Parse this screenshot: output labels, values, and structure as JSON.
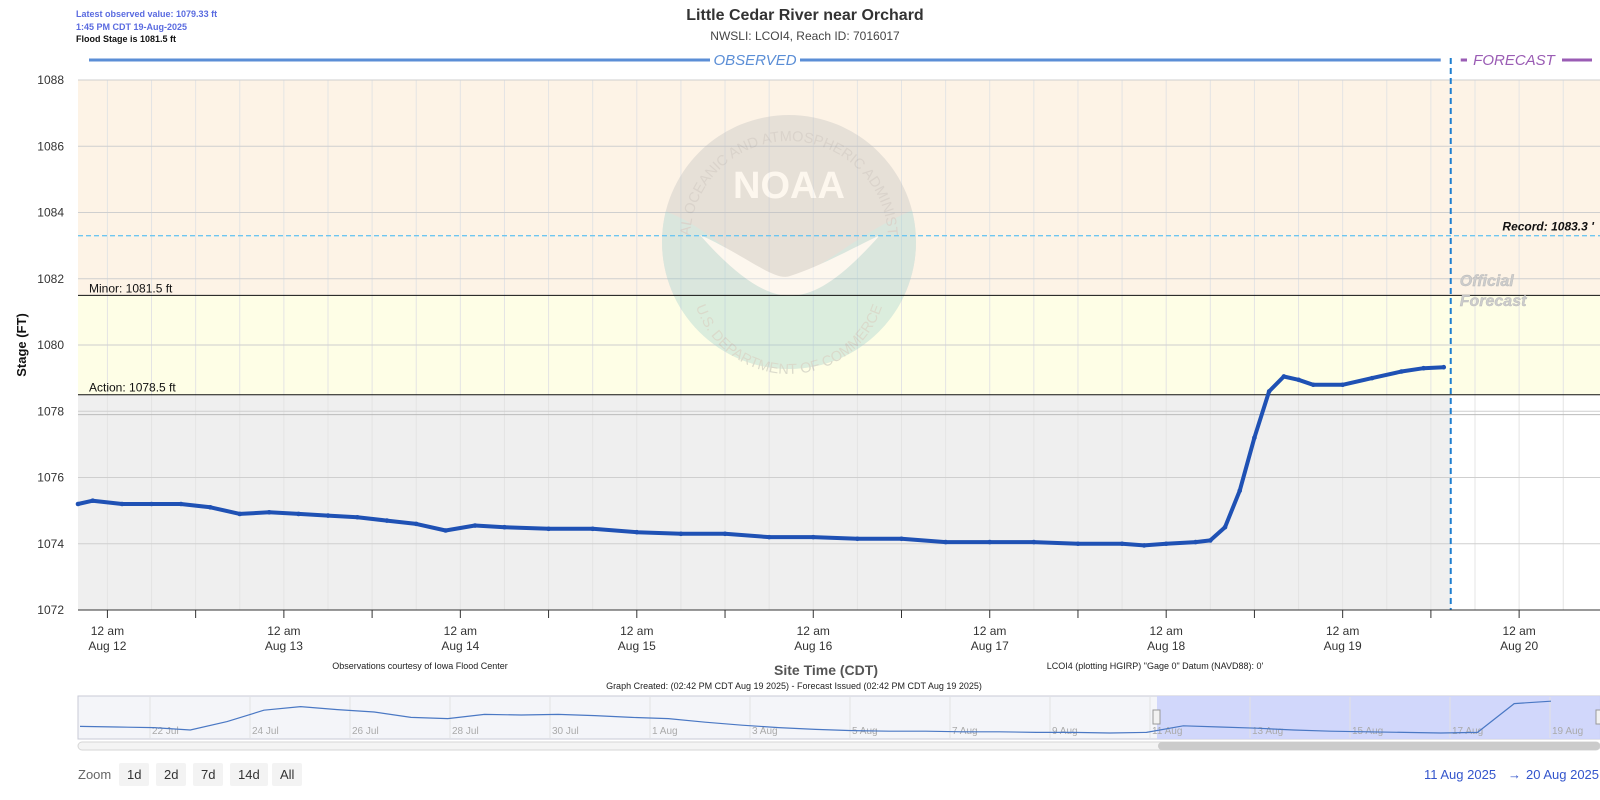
{
  "header": {
    "latest_label": "Latest observed value: 1079.33 ft",
    "latest_time": "1:45 PM CDT 19-Aug-2025",
    "flood_stage": "Flood Stage is 1081.5 ft",
    "title": "Little Cedar River near Orchard",
    "subtitle": "NWSLI: LCOI4, Reach ID: 7016017"
  },
  "sections": {
    "observed": "OBSERVED",
    "forecast": "FORECAST"
  },
  "watermark": {
    "logo_text": "NOAA",
    "ring_top": "NATIONAL OCEANIC AND ATMOSPHERIC ADMINISTRATION",
    "ring_bottom": "U.S. DEPARTMENT OF COMMERCE"
  },
  "official_forecast": [
    "Official",
    "Forecast"
  ],
  "thresholds": {
    "record_label": "Record: 1083.3 '",
    "minor_label": "Minor: 1081.5 ft",
    "action_label": "Action: 1078.5 ft"
  },
  "footer": {
    "xlabel": "Site Time (CDT)",
    "courtesy": "Observations courtesy of Iowa Flood Center",
    "datum": "LCOI4 (plotting HGIRP) \"Gage 0\" Datum (NAVD88): 0'",
    "created": "Graph Created: (02:42 PM CDT Aug 19 2025) - Forecast Issued (02:42 PM CDT Aug 19 2025)"
  },
  "navigator": {
    "labels": [
      "22 Jul",
      "24 Jul",
      "26 Jul",
      "28 Jul",
      "30 Jul",
      "1 Aug",
      "3 Aug",
      "5 Aug",
      "7 Aug",
      "9 Aug",
      "11 Aug",
      "13 Aug",
      "15 Aug",
      "17 Aug",
      "19 Aug"
    ],
    "series_values": [
      1075.1,
      1075.0,
      1074.9,
      1074.5,
      1075.9,
      1077.8,
      1078.4,
      1077.9,
      1077.5,
      1076.6,
      1076.4,
      1077.1,
      1077.0,
      1077.1,
      1076.9,
      1076.6,
      1076.4,
      1075.8,
      1075.3,
      1074.9,
      1074.6,
      1074.4,
      1074.3,
      1074.3,
      1074.2,
      1074.2,
      1074.1,
      1074.1,
      1074.0,
      1074.1,
      1075.2,
      1075.0,
      1074.8,
      1074.5,
      1074.3,
      1074.2,
      1074.1,
      1074.0,
      1074.1,
      1078.9,
      1079.3
    ]
  },
  "controls": {
    "zoom_label": "Zoom",
    "buttons": [
      "1d",
      "2d",
      "7d",
      "14d",
      "All"
    ],
    "range_from": "11 Aug 2025",
    "arrow": "→",
    "range_to": "20 Aug 2025"
  },
  "colors": {
    "major_band": "#fdf3e6",
    "minor_band": "#fefee6",
    "normal_band": "#efefef",
    "series": "#1f51b4",
    "observed_bar": "#5b8ed6",
    "forecast_bar": "#9a5cb4",
    "record_line": "#6ec6f0",
    "forecast_divider": "#1f7fd0"
  },
  "chart_data": {
    "type": "line",
    "title": "Little Cedar River near Orchard",
    "subtitle": "NWSLI: LCOI4, Reach ID: 7016017",
    "xlabel": "Site Time (CDT)",
    "ylabel": "Stage (FT)",
    "ylim": [
      1072,
      1088
    ],
    "yticks": [
      1072,
      1074,
      1076,
      1078,
      1080,
      1082,
      1084,
      1086,
      1088
    ],
    "xlim": [
      "2025-08-11 20:00",
      "2025-08-20 11:00"
    ],
    "xticks": [
      {
        "t": "2025-08-12 00:00",
        "line1": "12 am",
        "line2": "Aug 12"
      },
      {
        "t": "2025-08-13 00:00",
        "line1": "12 am",
        "line2": "Aug 13"
      },
      {
        "t": "2025-08-14 00:00",
        "line1": "12 am",
        "line2": "Aug 14"
      },
      {
        "t": "2025-08-15 00:00",
        "line1": "12 am",
        "line2": "Aug 15"
      },
      {
        "t": "2025-08-16 00:00",
        "line1": "12 am",
        "line2": "Aug 16"
      },
      {
        "t": "2025-08-17 00:00",
        "line1": "12 am",
        "line2": "Aug 17"
      },
      {
        "t": "2025-08-18 00:00",
        "line1": "12 am",
        "line2": "Aug 18"
      },
      {
        "t": "2025-08-19 00:00",
        "line1": "12 am",
        "line2": "Aug 19"
      },
      {
        "t": "2025-08-20 00:00",
        "line1": "12 am",
        "line2": "Aug 20"
      }
    ],
    "grid": true,
    "thresholds": {
      "action": 1078.5,
      "minor": 1081.5,
      "record": 1083.3,
      "moderate_dashed": 1077.9
    },
    "forecast_issued": "2025-08-19 14:42",
    "series": [
      {
        "x": [
          "2025-08-11 20:00",
          "2025-08-11 22:00",
          "2025-08-12 02:00",
          "2025-08-12 06:00",
          "2025-08-12 10:00",
          "2025-08-12 14:00",
          "2025-08-12 18:00",
          "2025-08-12 22:00",
          "2025-08-13 02:00",
          "2025-08-13 06:00",
          "2025-08-13 10:00",
          "2025-08-13 14:00",
          "2025-08-13 18:00",
          "2025-08-13 22:00",
          "2025-08-14 02:00",
          "2025-08-14 06:00",
          "2025-08-14 12:00",
          "2025-08-14 18:00",
          "2025-08-15 00:00",
          "2025-08-15 06:00",
          "2025-08-15 12:00",
          "2025-08-15 18:00",
          "2025-08-16 00:00",
          "2025-08-16 06:00",
          "2025-08-16 12:00",
          "2025-08-16 18:00",
          "2025-08-17 00:00",
          "2025-08-17 06:00",
          "2025-08-17 12:00",
          "2025-08-17 18:00",
          "2025-08-17 21:00",
          "2025-08-18 00:00",
          "2025-08-18 04:00",
          "2025-08-18 06:00",
          "2025-08-18 08:00",
          "2025-08-18 10:00",
          "2025-08-18 12:00",
          "2025-08-18 14:00",
          "2025-08-18 16:00",
          "2025-08-18 18:00",
          "2025-08-18 20:00",
          "2025-08-19 00:00",
          "2025-08-19 04:00",
          "2025-08-19 08:00",
          "2025-08-19 11:00",
          "2025-08-19 13:45"
        ],
        "y": [
          1075.2,
          1075.3,
          1075.2,
          1075.2,
          1075.2,
          1075.1,
          1074.9,
          1074.95,
          1074.9,
          1074.85,
          1074.8,
          1074.7,
          1074.6,
          1074.4,
          1074.55,
          1074.5,
          1074.45,
          1074.45,
          1074.35,
          1074.3,
          1074.3,
          1074.2,
          1074.2,
          1074.15,
          1074.15,
          1074.05,
          1074.05,
          1074.05,
          1074.0,
          1074.0,
          1073.95,
          1074.0,
          1074.05,
          1074.1,
          1074.5,
          1075.6,
          1077.2,
          1078.6,
          1079.05,
          1078.95,
          1078.8,
          1078.8,
          1079.0,
          1079.2,
          1079.3,
          1079.33
        ]
      }
    ]
  }
}
